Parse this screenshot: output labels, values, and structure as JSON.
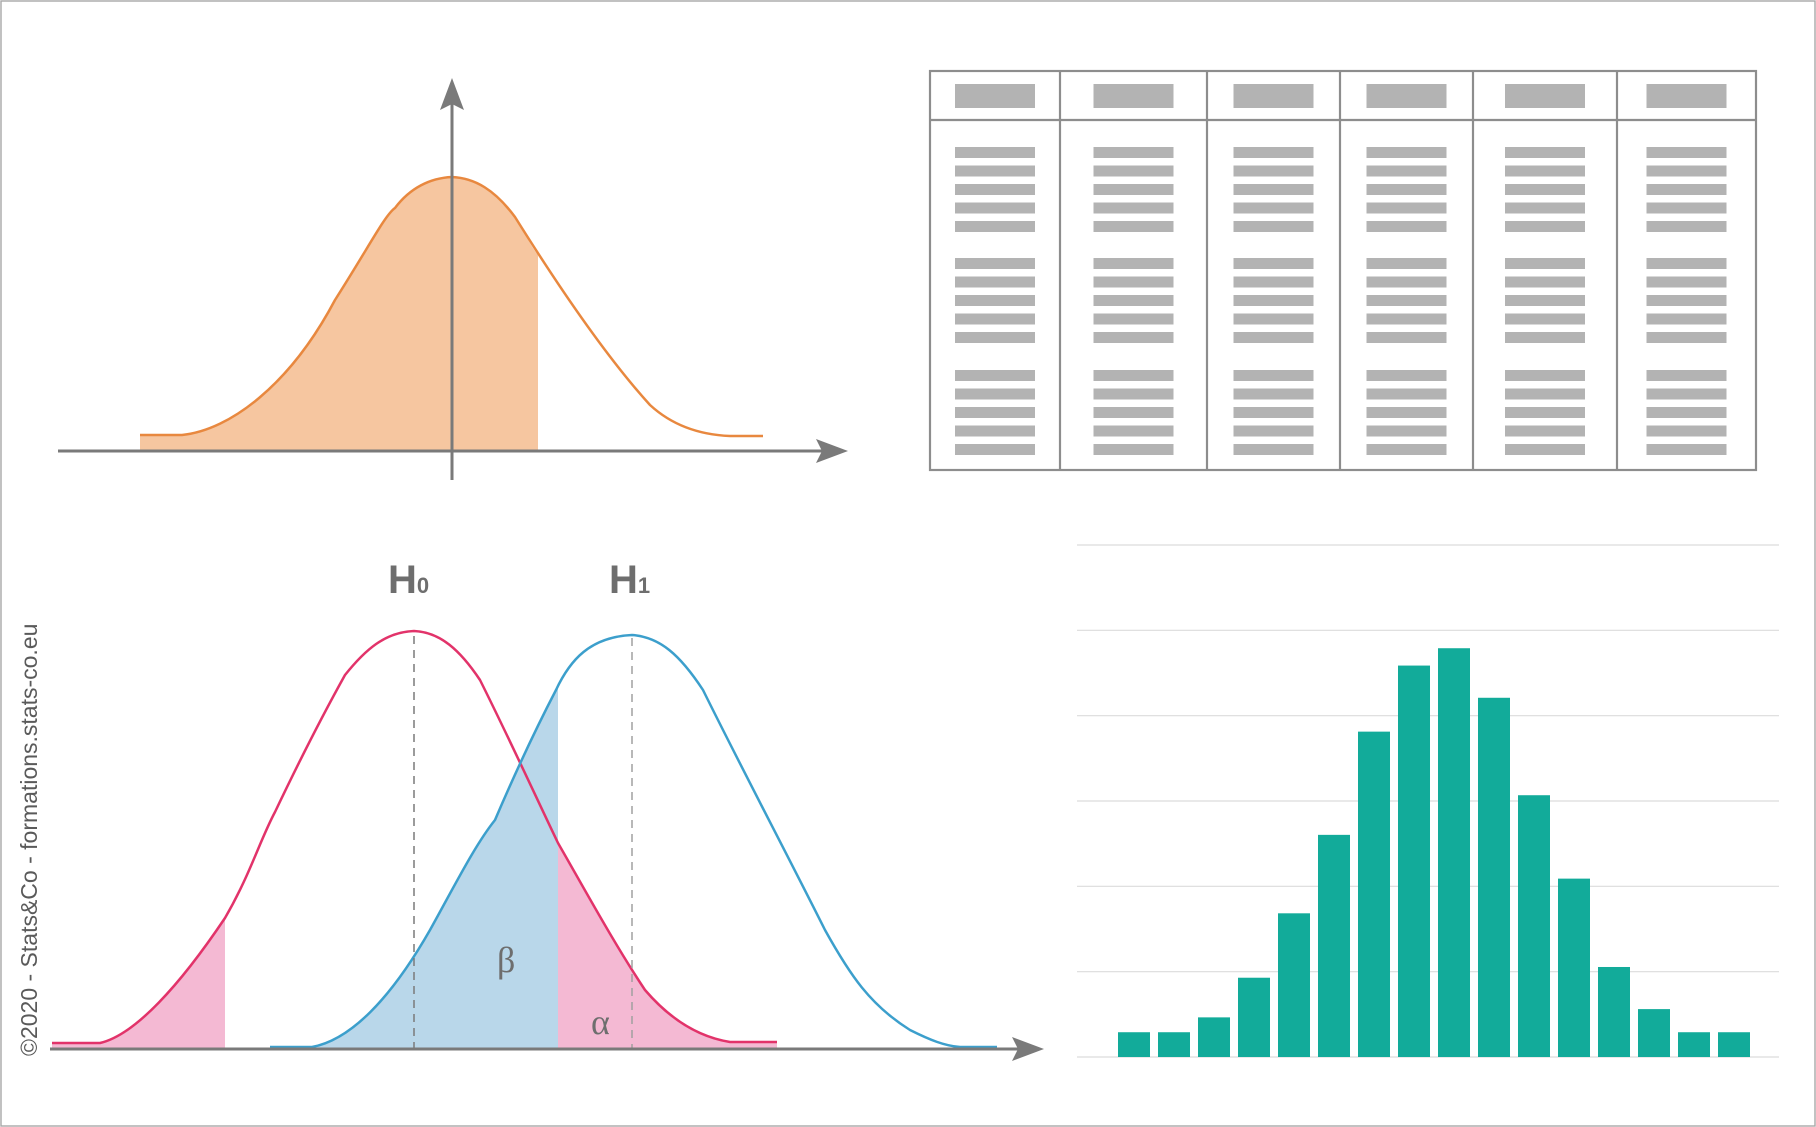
{
  "copyright": "©2020 - Stats&Co - formations.stats-co.eu",
  "hypotheses": {
    "h0": {
      "letter": "H",
      "sub": "0"
    },
    "h1": {
      "letter": "H",
      "sub": "1"
    }
  },
  "errors": {
    "beta": "β",
    "alpha": "α"
  },
  "colors": {
    "orange_line": "#e8883f",
    "orange_fill": "#f6c6a0",
    "pink_line": "#e2336a",
    "pink_fill": "#f4b9d3",
    "blue_line": "#3c9fcc",
    "blue_fill": "#b9d7ea",
    "bar": "#12ab9a",
    "axis": "#7a7a7a",
    "table_block": "#b3b3b3",
    "table_border": "#8d8d8d"
  },
  "icons": {
    "normal_curve": "normal-distribution-icon",
    "data_table": "data-table-icon",
    "hypothesis_test": "hypothesis-test-icon",
    "histogram": "histogram-icon"
  },
  "chart_data": {
    "type": "bar",
    "values": [
      3,
      3,
      4.8,
      9.6,
      17.4,
      26.9,
      39.4,
      47.4,
      49.5,
      43.5,
      31.7,
      21.6,
      10.9,
      5.8,
      3,
      3
    ],
    "ylim": [
      0,
      62
    ],
    "gridlines": 6,
    "grid": true,
    "title": "",
    "xlabel": "",
    "ylabel": ""
  }
}
